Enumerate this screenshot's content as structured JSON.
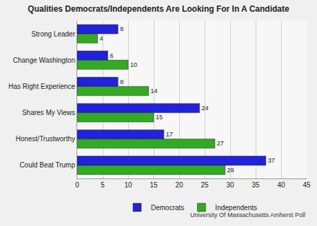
{
  "chart_data": {
    "type": "bar",
    "title": "Qualities Democrats/Independents Are Looking For In A Candidate",
    "orientation": "horizontal",
    "categories": [
      "Strong Leader",
      "Change Washington",
      "Has Right Experience",
      "Shares My Views",
      "Honest/Trustworthy",
      "Could Beat Trump"
    ],
    "series": [
      {
        "name": "Democrats",
        "color": "#2222dd",
        "values": [
          8,
          6,
          8,
          24,
          17,
          37
        ]
      },
      {
        "name": "Independents",
        "color": "#33aa22",
        "values": [
          4,
          10,
          14,
          15,
          27,
          29
        ]
      }
    ],
    "xlim": [
      0,
      45
    ],
    "xticks": [
      0,
      5,
      10,
      15,
      20,
      25,
      30,
      35,
      40,
      45
    ],
    "grid": true,
    "legend": "bottom",
    "data_labels": true,
    "annotations": [
      "University Of Massachusetts Amherst Poll"
    ]
  }
}
